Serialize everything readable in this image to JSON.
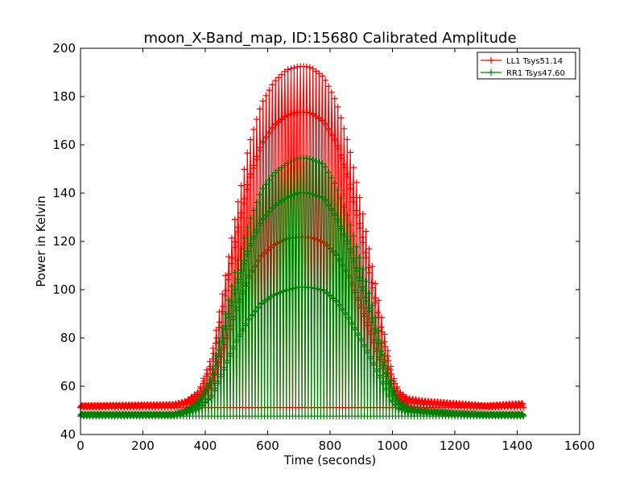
{
  "chart_data": {
    "type": "line",
    "title": "moon_X-Band_map, ID:15680 Calibrated Amplitude",
    "xlabel": "Time (seconds)",
    "ylabel": "Power in Kelvin",
    "xlim": [
      0,
      1600
    ],
    "ylim": [
      40,
      200
    ],
    "x_ticks": [
      0,
      200,
      400,
      600,
      800,
      1000,
      1200,
      1400,
      1600
    ],
    "y_ticks": [
      40,
      60,
      80,
      100,
      120,
      140,
      160,
      180,
      200
    ],
    "grid": false,
    "legend_position": "top-right",
    "marker": "+",
    "x_range": [
      0,
      1420
    ],
    "series": [
      {
        "name": "LL1 Tsys51.14",
        "color": "#ff0000",
        "baseline": 51.14,
        "peak_envelope": {
          "x": [
            0,
            300,
            340,
            380,
            420,
            460,
            500,
            540,
            580,
            620,
            660,
            700,
            720,
            740,
            780,
            820,
            860,
            900,
            940,
            980,
            1000,
            1020,
            1050,
            1100,
            1200,
            1300,
            1420
          ],
          "y": [
            52,
            52.5,
            54,
            58,
            72,
            102,
            133,
            160,
            177,
            186,
            191,
            192.5,
            192.5,
            192,
            188,
            178,
            160,
            135,
            106,
            78,
            65,
            58,
            55,
            54,
            53,
            52,
            53
          ]
        }
      },
      {
        "name": "RR1 Tsys47.60",
        "color": "#008000",
        "baseline": 47.6,
        "peak_envelope": {
          "x": [
            0,
            300,
            340,
            380,
            420,
            460,
            500,
            540,
            580,
            620,
            660,
            700,
            720,
            740,
            780,
            820,
            860,
            900,
            940,
            980,
            1000,
            1020,
            1050,
            1100,
            1200,
            1300,
            1420
          ],
          "y": [
            48.5,
            48.5,
            50,
            54,
            64,
            87,
            110,
            128,
            141,
            148,
            152,
            154.5,
            154.5,
            154,
            152,
            143,
            129,
            111,
            91,
            70,
            60,
            54,
            51,
            50,
            49,
            48.5,
            48.5
          ]
        }
      }
    ]
  }
}
